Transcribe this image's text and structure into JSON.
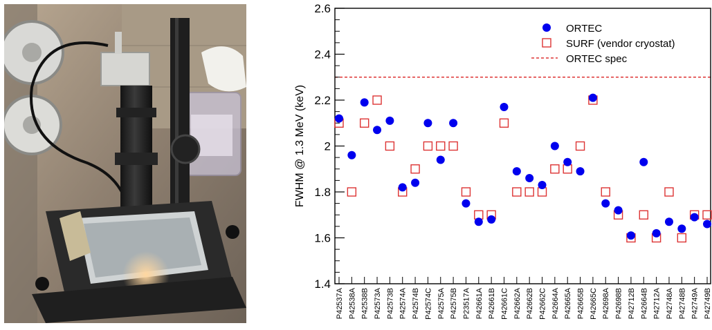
{
  "chart_data": {
    "type": "scatter",
    "ylabel": "FWHM @ 1.3 MeV (keV)",
    "ylim": [
      1.4,
      2.6
    ],
    "yticks": [
      1.4,
      1.6,
      1.8,
      2,
      2.2,
      2.4,
      2.6
    ],
    "ytick_labels": [
      "1.4",
      "1.6",
      "1.8",
      "2",
      "2.2",
      "2.4",
      "2.6"
    ],
    "legend_position": "top-right",
    "categories": [
      "P42537A",
      "P42538A",
      "P42538B",
      "P42573A",
      "P42573B",
      "P42574A",
      "P42574B",
      "P42574C",
      "P42575A",
      "P42575B",
      "P23517A",
      "P42661A",
      "P42661B",
      "P42661C",
      "P42662A",
      "P42662B",
      "P42662C",
      "P42664A",
      "P42665A",
      "P42665B",
      "P42665C",
      "P42698A",
      "P42698B",
      "P42712B",
      "P42664B",
      "P42712A",
      "P42748A",
      "P42748B",
      "P42749A",
      "P42749B"
    ],
    "series": [
      {
        "name": "ORTEC",
        "marker": "filled-circle",
        "color": "#0000ee",
        "values": [
          2.12,
          1.96,
          2.19,
          2.07,
          2.11,
          1.82,
          1.84,
          2.1,
          1.94,
          2.1,
          1.75,
          1.67,
          1.68,
          2.17,
          1.89,
          1.86,
          1.83,
          2.0,
          1.93,
          1.89,
          2.21,
          1.75,
          1.72,
          1.61,
          1.93,
          1.62,
          1.67,
          1.64,
          1.69,
          1.66
        ]
      },
      {
        "name": "SURF (vendor cryostat)",
        "marker": "open-square",
        "color": "#dd3333",
        "values": [
          2.1,
          1.8,
          2.1,
          2.2,
          2.0,
          1.8,
          1.9,
          2.0,
          2.0,
          2.0,
          1.8,
          1.7,
          1.7,
          2.1,
          1.8,
          1.8,
          1.8,
          1.9,
          1.9,
          2.0,
          2.2,
          1.8,
          1.7,
          1.6,
          1.7,
          1.6,
          1.8,
          1.6,
          1.7,
          1.7
        ]
      }
    ],
    "reference_lines": [
      {
        "name": "ORTEC spec",
        "y": 2.3,
        "style": "dashed",
        "color": "#dd3333"
      }
    ]
  }
}
